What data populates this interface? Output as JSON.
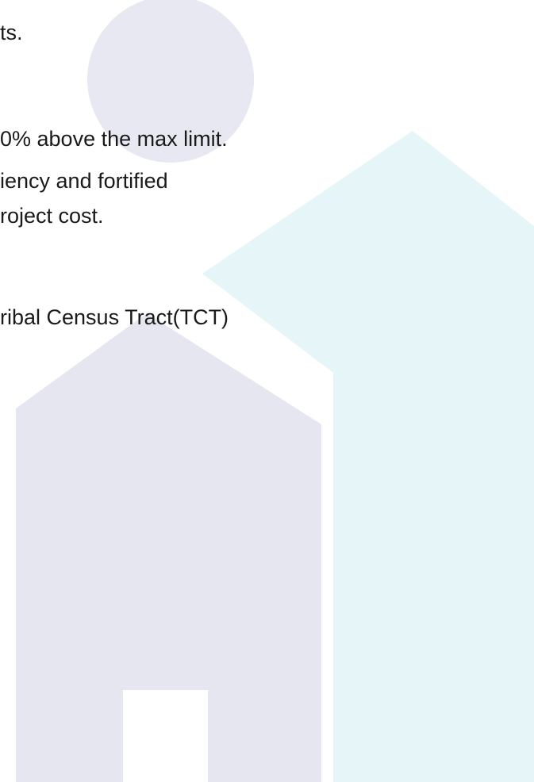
{
  "text_lines": [
    "ts.",
    "0% above the max limit.",
    "iency and fortified",
    "roject cost.",
    "ribal Census Tract(TCT)"
  ]
}
